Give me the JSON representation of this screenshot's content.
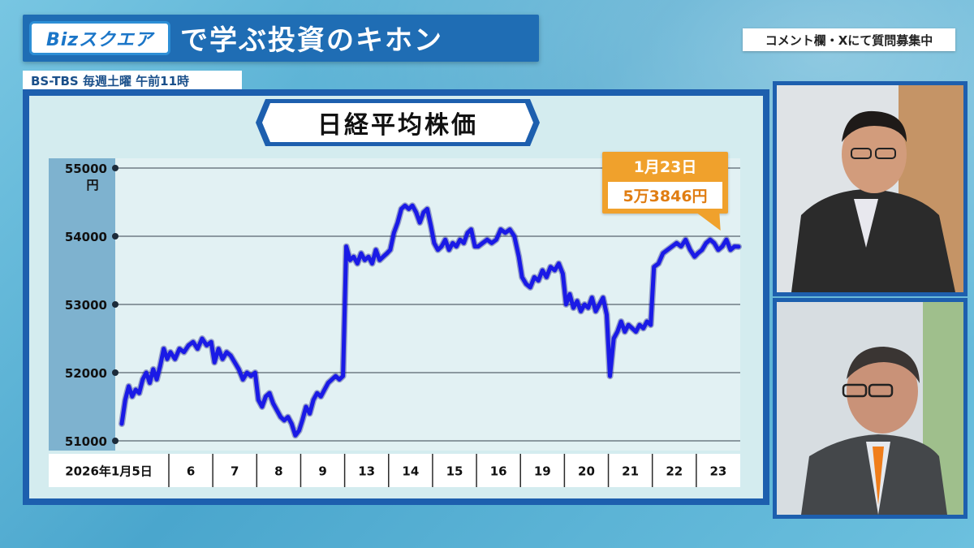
{
  "header": {
    "logo": "Bizスクエア",
    "title": "で学ぶ投資のキホン",
    "comment_badge": "コメント欄・Xにて質問募集中",
    "schedule": "BS-TBS 毎週土曜 午前11時"
  },
  "callout": {
    "date": "1月23日",
    "value": "5万3846円"
  },
  "colors": {
    "panel": "#1d5fae",
    "line": "#1a1ae6",
    "callout": "#f0a12c",
    "plot_bg": "#d4ecef"
  },
  "chart_data": {
    "type": "line",
    "title": "日経平均株価",
    "ylabel": "円",
    "ylim": [
      51000,
      55000
    ],
    "yticks": [
      51000,
      52000,
      53000,
      54000,
      55000
    ],
    "grid": true,
    "categories": [
      "2026年1月5日",
      "6",
      "7",
      "8",
      "9",
      "13",
      "14",
      "15",
      "16",
      "19",
      "20",
      "21",
      "22",
      "23"
    ],
    "series": [
      {
        "values": [
          [
            51250,
            51600,
            51800,
            51650,
            51750,
            51700,
            51900,
            52000,
            51850,
            52050,
            51900,
            52100,
            52350,
            52200
          ],
          [
            52300,
            52200,
            52350,
            52300,
            52400,
            52450,
            52350,
            52500,
            52400,
            52450
          ],
          [
            52150,
            52350,
            52200,
            52300,
            52250,
            52150,
            52050,
            51900,
            52000,
            51950,
            52000
          ],
          [
            51600,
            51500,
            51650,
            51700,
            51550,
            51450,
            51350,
            51300,
            51350,
            51250,
            51080,
            51150
          ],
          [
            51300,
            51500,
            51400,
            51600,
            51700,
            51650,
            51750,
            51850,
            51900,
            51950,
            51900,
            51950
          ],
          [
            53850,
            53650,
            53700,
            53600,
            53750,
            53650,
            53700,
            53600,
            53800,
            53650,
            53700,
            53750
          ],
          [
            53800,
            54050,
            54200,
            54400,
            54450,
            54400,
            54450,
            54350,
            54200,
            54350,
            54400,
            54150
          ],
          [
            53900,
            53800,
            53850,
            53950,
            53800,
            53900,
            53850,
            53950,
            53900,
            54050,
            54100,
            53850
          ],
          [
            53850,
            53900,
            53950,
            53900,
            53950,
            54100,
            54050,
            54100,
            54000,
            53700
          ],
          [
            53400,
            53300,
            53250,
            53400,
            53350,
            53500,
            53400,
            53550,
            53500,
            53600,
            53450
          ],
          [
            53000,
            53150,
            52950,
            53050,
            52900,
            53000,
            52950,
            53100,
            52900,
            53000,
            53100,
            52850
          ],
          [
            51950,
            52500,
            52600,
            52750,
            52600,
            52700,
            52650,
            52600,
            52700,
            52650,
            52750,
            52700
          ],
          [
            53550,
            53600,
            53750,
            53800,
            53850,
            53900,
            53850,
            53950,
            53800,
            53700
          ],
          [
            53750,
            53800,
            53900,
            53950,
            53900,
            53800,
            53850,
            53950,
            53800,
            53850,
            53846
          ]
        ]
      }
    ]
  }
}
